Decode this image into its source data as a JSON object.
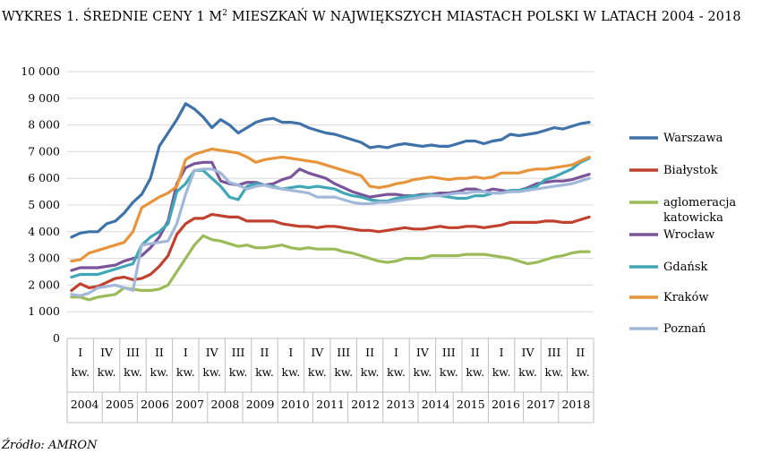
{
  "title": "WYKRES 1. ŚREDNIE CENY 1 M",
  "title_sup": "2",
  "title_rest": " MIESZKAŃ W NAJWIĘKSZYCH MIASTACH POLSKI W LATACH 2004 - 2018",
  "source": "Źródło: AMRON",
  "chart_data": {
    "type": "line",
    "title": "WYKRES 1. ŚREDNIE CENY 1 M2 MIESZKAŃ W NAJWIĘKSZYCH MIASTACH POLSKI W LATACH 2004 - 2018",
    "ylim": [
      0,
      10000
    ],
    "yticks": [
      "0",
      "1 000",
      "2 000",
      "3 000",
      "4 000",
      "5 000",
      "6 000",
      "7 000",
      "8 000",
      "9 000",
      "10 000"
    ],
    "grid": "horizontal",
    "legend_position": "right",
    "x_quarter_labels": [
      "I",
      "IV",
      "III",
      "II",
      "I",
      "IV",
      "III",
      "II",
      "I",
      "IV",
      "III",
      "II",
      "I",
      "IV",
      "III",
      "II",
      "I",
      "IV",
      "III",
      "II"
    ],
    "x_kw_label": "kw.",
    "years": [
      "2004",
      "2005",
      "2006",
      "2007",
      "2008",
      "2009",
      "2010",
      "2011",
      "2012",
      "2013",
      "2014",
      "2015",
      "2016",
      "2017",
      "2018"
    ],
    "x": [
      "2004 I",
      "2004 II",
      "2004 III",
      "2004 IV",
      "2005 I",
      "2005 II",
      "2005 III",
      "2005 IV",
      "2006 I",
      "2006 II",
      "2006 III",
      "2006 IV",
      "2007 I",
      "2007 II",
      "2007 III",
      "2007 IV",
      "2008 I",
      "2008 II",
      "2008 III",
      "2008 IV",
      "2009 I",
      "2009 II",
      "2009 III",
      "2009 IV",
      "2010 I",
      "2010 II",
      "2010 III",
      "2010 IV",
      "2011 I",
      "2011 II",
      "2011 III",
      "2011 IV",
      "2012 I",
      "2012 II",
      "2012 III",
      "2012 IV",
      "2013 I",
      "2013 II",
      "2013 III",
      "2013 IV",
      "2014 I",
      "2014 II",
      "2014 III",
      "2014 IV",
      "2015 I",
      "2015 II",
      "2015 III",
      "2015 IV",
      "2016 I",
      "2016 II",
      "2016 III",
      "2016 IV",
      "2017 I",
      "2017 II",
      "2017 III",
      "2017 IV",
      "2018 I",
      "2018 II",
      "2018 III",
      "2018 IV"
    ],
    "series": [
      {
        "name": "Warszawa",
        "color": "#3e72a8",
        "values": [
          3800,
          3950,
          4000,
          4000,
          4300,
          4400,
          4700,
          5100,
          5400,
          6000,
          7200,
          7700,
          8200,
          8800,
          8600,
          8300,
          7900,
          8200,
          8000,
          7700,
          7900,
          8100,
          8200,
          8250,
          8100,
          8100,
          8050,
          7900,
          7800,
          7700,
          7650,
          7550,
          7450,
          7350,
          7150,
          7200,
          7150,
          7250,
          7300,
          7250,
          7200,
          7250,
          7200,
          7200,
          7300,
          7400,
          7400,
          7300,
          7400,
          7450,
          7650,
          7600,
          7650,
          7700,
          7800,
          7900,
          7850,
          7950,
          8050,
          8100
        ]
      },
      {
        "name": "Białystok",
        "color": "#c0412e",
        "values": [
          1800,
          2050,
          1900,
          1950,
          2100,
          2250,
          2300,
          2200,
          2250,
          2400,
          2700,
          3100,
          3900,
          4300,
          4500,
          4500,
          4650,
          4600,
          4550,
          4550,
          4400,
          4400,
          4400,
          4400,
          4300,
          4250,
          4200,
          4200,
          4150,
          4200,
          4200,
          4150,
          4100,
          4050,
          4050,
          4000,
          4050,
          4100,
          4150,
          4100,
          4100,
          4150,
          4200,
          4150,
          4150,
          4200,
          4200,
          4150,
          4200,
          4250,
          4350,
          4350,
          4350,
          4350,
          4400,
          4400,
          4350,
          4350,
          4450,
          4550
        ]
      },
      {
        "name": "aglomeracja katowicka",
        "color": "#9bbb59",
        "values": [
          1550,
          1550,
          1450,
          1550,
          1600,
          1650,
          1900,
          1850,
          1800,
          1800,
          1850,
          2000,
          2500,
          3000,
          3500,
          3850,
          3700,
          3650,
          3550,
          3450,
          3500,
          3400,
          3400,
          3450,
          3500,
          3400,
          3350,
          3400,
          3350,
          3350,
          3350,
          3250,
          3200,
          3100,
          3000,
          2900,
          2850,
          2900,
          3000,
          3000,
          3000,
          3100,
          3100,
          3100,
          3100,
          3150,
          3150,
          3150,
          3100,
          3050,
          3000,
          2900,
          2800,
          2850,
          2950,
          3050,
          3100,
          3200,
          3250,
          3250
        ]
      },
      {
        "name": "Wrocław",
        "color": "#7b559a",
        "values": [
          2550,
          2650,
          2650,
          2650,
          2700,
          2750,
          2900,
          3000,
          3100,
          3400,
          3800,
          4400,
          5800,
          6400,
          6550,
          6600,
          6600,
          5900,
          5800,
          5750,
          5850,
          5850,
          5750,
          5800,
          5950,
          6050,
          6350,
          6200,
          6100,
          6000,
          5800,
          5650,
          5500,
          5400,
          5300,
          5350,
          5400,
          5400,
          5350,
          5350,
          5400,
          5400,
          5450,
          5450,
          5500,
          5600,
          5600,
          5500,
          5600,
          5550,
          5500,
          5550,
          5650,
          5800,
          5850,
          5900,
          5900,
          5950,
          6050,
          6150
        ]
      },
      {
        "name": "Gdańsk",
        "color": "#3fa7b6",
        "values": [
          2300,
          2400,
          2400,
          2400,
          2500,
          2600,
          2700,
          2800,
          3500,
          3800,
          4000,
          4300,
          5500,
          5800,
          6300,
          6300,
          6000,
          5700,
          5300,
          5200,
          5700,
          5800,
          5750,
          5700,
          5600,
          5650,
          5700,
          5650,
          5700,
          5650,
          5600,
          5450,
          5350,
          5300,
          5200,
          5150,
          5150,
          5250,
          5300,
          5350,
          5350,
          5400,
          5350,
          5300,
          5250,
          5250,
          5350,
          5350,
          5450,
          5450,
          5550,
          5550,
          5600,
          5700,
          5950,
          6050,
          6200,
          6350,
          6600,
          6750
        ]
      },
      {
        "name": "Kraków",
        "color": "#e8943a",
        "values": [
          2900,
          2950,
          3200,
          3300,
          3400,
          3500,
          3600,
          4000,
          4900,
          5100,
          5300,
          5450,
          5700,
          6700,
          6900,
          7000,
          7100,
          7050,
          7000,
          6950,
          6800,
          6600,
          6700,
          6750,
          6800,
          6750,
          6700,
          6650,
          6600,
          6500,
          6400,
          6300,
          6200,
          6100,
          5700,
          5650,
          5700,
          5800,
          5850,
          5950,
          6000,
          6050,
          6000,
          5950,
          6000,
          6000,
          6050,
          6000,
          6050,
          6200,
          6200,
          6200,
          6300,
          6350,
          6350,
          6400,
          6450,
          6500,
          6650,
          6800
        ]
      },
      {
        "name": "Poznań",
        "color": "#a2b8d8",
        "values": [
          1650,
          1600,
          1700,
          1900,
          1950,
          2000,
          1900,
          1800,
          3500,
          3550,
          3600,
          3650,
          4300,
          5400,
          6300,
          6350,
          6350,
          6200,
          5850,
          5750,
          5600,
          5700,
          5750,
          5650,
          5600,
          5550,
          5500,
          5450,
          5300,
          5300,
          5300,
          5200,
          5100,
          5050,
          5050,
          5100,
          5100,
          5150,
          5200,
          5250,
          5300,
          5350,
          5350,
          5400,
          5450,
          5450,
          5500,
          5500,
          5450,
          5450,
          5500,
          5500,
          5550,
          5600,
          5650,
          5700,
          5750,
          5800,
          5900,
          6000
        ]
      }
    ]
  }
}
